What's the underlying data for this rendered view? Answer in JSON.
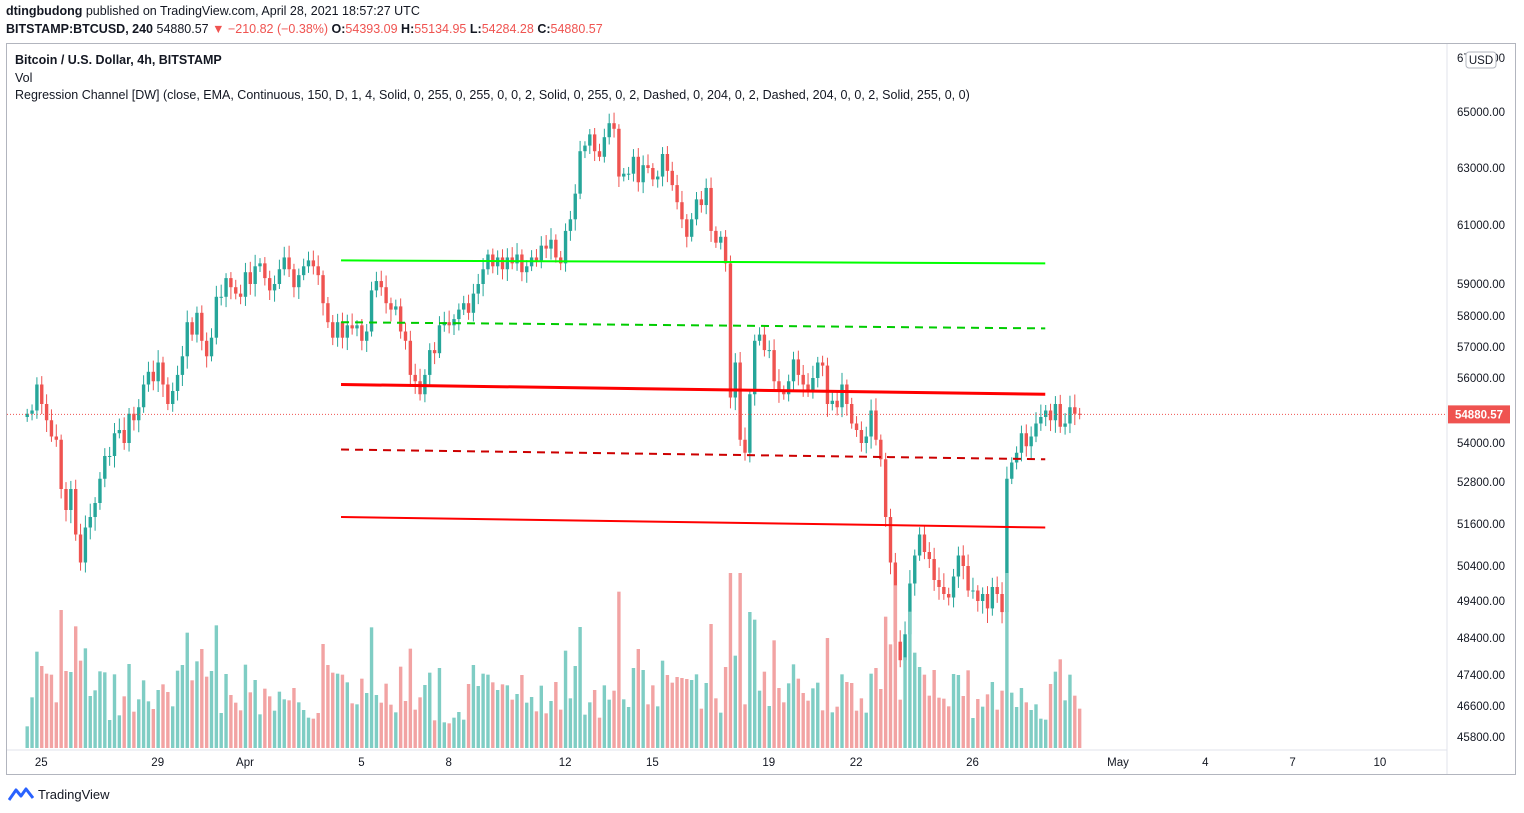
{
  "header": {
    "author": "dtingbudong",
    "published": " published on TradingView.com, April 28, 2021 18:57:27 UTC",
    "symbol": "BITSTAMP:BTCUSD, 240",
    "price": "54880.57",
    "change": "▼ −210.82 (−0.38%)",
    "o_label": "O:",
    "o": "54393.09",
    "h_label": "H:",
    "h": "55134.95",
    "l_label": "L:",
    "l": "54284.28",
    "c_label": "C:",
    "c": "54880.57"
  },
  "legend": {
    "title": "Bitcoin / U.S. Dollar, 4h, BITSTAMP",
    "vol": "Vol",
    "indicator": "Regression Channel [DW] (close, EMA, Continuous, 150, D, 1, 4, Solid, 0, 255, 0, 255, 0, 0, 2, Solid, 0, 255, 0, 2, Dashed, 0, 204, 0, 2, Dashed, 204, 0, 0, 2, Solid, 255, 0, 0)"
  },
  "footer": {
    "brand": "TradingView",
    "brand_icon": "tradingview-logo-icon"
  },
  "colors": {
    "up": "#26a69a",
    "down": "#ef5350",
    "vol_up": "#7fcdc4",
    "vol_down": "#f2a3a3",
    "green_line": "#00ff00",
    "green_dash": "#00cc00",
    "red_line": "#ff0000",
    "red_dash": "#cc0000",
    "price_tag": "#ef5350"
  },
  "chart_data": {
    "type": "candlestick",
    "currency": "USD",
    "last_price_label": "54880.57",
    "y_ticks": [
      "67000.00",
      "65000.00",
      "63000.00",
      "61000.00",
      "59000.00",
      "58000.00",
      "57000.00",
      "56000.00",
      "54000.00",
      "52800.00",
      "51600.00",
      "50400.00",
      "49400.00",
      "48400.00",
      "47400.00",
      "46600.00",
      "45800.00"
    ],
    "x_ticks": [
      "25",
      "29",
      "Apr",
      "5",
      "8",
      "12",
      "15",
      "19",
      "22",
      "26",
      "May",
      "4",
      "7",
      "10"
    ],
    "x_tick_days": [
      -6,
      -2,
      1,
      5,
      8,
      12,
      15,
      19,
      22,
      26,
      31,
      34,
      37,
      40
    ],
    "regression_channel": {
      "start_day": 4.3,
      "end_day": 28.5,
      "lines": [
        {
          "style": "solid",
          "color": "#00ff00",
          "start": 59800,
          "end": 59700
        },
        {
          "style": "dashed",
          "color": "#00cc00",
          "start": 57800,
          "end": 57600
        },
        {
          "style": "solid-thick",
          "color": "#ff0000",
          "start": 55800,
          "end": 55500
        },
        {
          "style": "dashed",
          "color": "#cc0000",
          "start": 53800,
          "end": 53500
        },
        {
          "style": "solid",
          "color": "#ff0000",
          "start": 51800,
          "end": 51500
        }
      ]
    },
    "candles_4h": [
      54900,
      55000,
      55800,
      55200,
      54700,
      54200,
      54100,
      52600,
      52000,
      52600,
      51300,
      50500,
      51500,
      51800,
      52200,
      52900,
      53600,
      53600,
      54300,
      54400,
      54000,
      54900,
      54700,
      55100,
      55800,
      56200,
      55900,
      56500,
      55800,
      55200,
      55600,
      56100,
      56700,
      57800,
      57400,
      58100,
      57200,
      56700,
      57300,
      58600,
      58600,
      59200,
      58900,
      58700,
      58600,
      59400,
      59000,
      59600,
      59700,
      59200,
      58800,
      59000,
      59500,
      59900,
      59500,
      58900,
      59300,
      59600,
      59800,
      59600,
      59300,
      58400,
      57800,
      57300,
      57800,
      57300,
      57700,
      57600,
      57700,
      57200,
      57500,
      58800,
      59100,
      58900,
      58400,
      58200,
      58300,
      57500,
      57200,
      56100,
      55900,
      55500,
      56100,
      56900,
      56800,
      57700,
      57800,
      57700,
      57900,
      58200,
      58400,
      58100,
      58700,
      59000,
      59500,
      60000,
      59600,
      59900,
      59500,
      59900,
      59700,
      60000,
      59400,
      59600,
      59900,
      59800,
      60300,
      60200,
      60500,
      59900,
      59700,
      60800,
      61200,
      62100,
      63600,
      63800,
      64200,
      63600,
      63400,
      64100,
      64600,
      64400,
      62700,
      62800,
      62800,
      63400,
      62500,
      63100,
      63000,
      62600,
      62700,
      63500,
      62900,
      62400,
      61800,
      61200,
      60600,
      61200,
      61900,
      61700,
      62300,
      60800,
      60400,
      60600,
      59700,
      55400,
      56500,
      54100,
      53700,
      55500,
      57200,
      57400,
      56900,
      56900,
      55900,
      55600,
      55500,
      55900,
      56600,
      56100,
      55800,
      55600,
      56000,
      56500,
      56400,
      55200,
      55300,
      55100,
      55800,
      55200,
      54600,
      54400,
      54000,
      54200,
      55000,
      54100,
      53500,
      51800,
      50500,
      48300,
      47800,
      48500,
      49900,
      50700,
      51300,
      50800,
      50600,
      50000,
      49800,
      49600,
      49500,
      50100,
      50700,
      50400,
      49700,
      49700,
      49400,
      49600,
      49200,
      49800,
      49600,
      49100,
      52900,
      53400,
      53700,
      54300,
      53900,
      54200,
      54600,
      54800,
      55000,
      54700,
      55200,
      54500,
      54600,
      55100,
      54900,
      54880
    ]
  }
}
